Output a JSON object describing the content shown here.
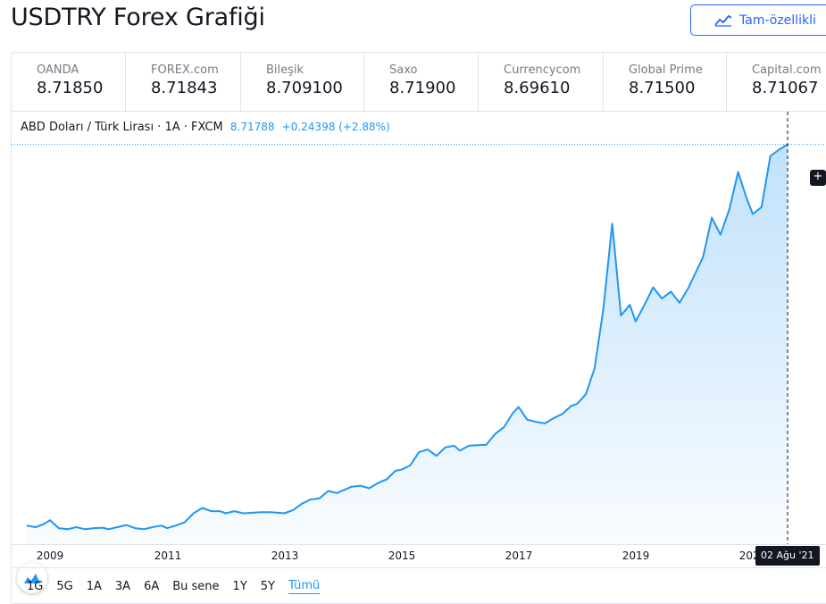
{
  "header": {
    "title": "USDTRY Forex Grafiği",
    "full_chart_label": "Tam-özellikli"
  },
  "quotes": [
    {
      "name": "OANDA",
      "price": "8.71850"
    },
    {
      "name": "FOREX.com",
      "price": "8.71843"
    },
    {
      "name": "Bileşik",
      "price": "8.709100"
    },
    {
      "name": "Saxo",
      "price": "8.71900"
    },
    {
      "name": "Currencycom",
      "price": "8.69610"
    },
    {
      "name": "Global Prime",
      "price": "8.71500"
    },
    {
      "name": "Capital.com",
      "price": "8.71067"
    }
  ],
  "legend": {
    "symbol": "ABD Doları / Türk Lirası · 1A · FXCM",
    "last": "8.71788",
    "change": "+0.24398 (+2.88%)"
  },
  "crosshair_date": "02 Ağu '21",
  "ranges": [
    {
      "label": "1G"
    },
    {
      "label": "5G"
    },
    {
      "label": "1A"
    },
    {
      "label": "3A"
    },
    {
      "label": "6A"
    },
    {
      "label": "Bu sene"
    },
    {
      "label": "1Y"
    },
    {
      "label": "5Y"
    },
    {
      "label": "Tümü",
      "active": true
    }
  ],
  "colors": {
    "line": "#2196f3",
    "accent": "#2962ff"
  },
  "chart_data": {
    "type": "area",
    "series": [
      {
        "x": [
          2008.6,
          2008.75,
          2008.9,
          2009.0,
          2009.15,
          2009.3,
          2009.45,
          2009.6,
          2009.75,
          2009.9,
          2010.0,
          2010.15,
          2010.3,
          2010.45,
          2010.6,
          2010.75,
          2010.9,
          2011.0,
          2011.15,
          2011.3,
          2011.45,
          2011.6,
          2011.75,
          2011.9,
          2012.0,
          2012.15,
          2012.3,
          2012.45,
          2012.6,
          2012.75,
          2012.9,
          2013.0,
          2013.15,
          2013.3,
          2013.45,
          2013.6,
          2013.75,
          2013.9,
          2014.0,
          2014.15,
          2014.3,
          2014.45,
          2014.6,
          2014.75,
          2014.9,
          2015.0,
          2015.15,
          2015.3,
          2015.45,
          2015.6,
          2015.75,
          2015.9,
          2016.0,
          2016.15,
          2016.3,
          2016.45,
          2016.6,
          2016.75,
          2016.9,
          2017.0,
          2017.15,
          2017.3,
          2017.45,
          2017.6,
          2017.75,
          2017.9,
          2018.0,
          2018.15,
          2018.3,
          2018.45,
          2018.6,
          2018.75,
          2018.9,
          2019.0,
          2019.15,
          2019.3,
          2019.45,
          2019.6,
          2019.75,
          2019.9,
          2020.0,
          2020.15,
          2020.3,
          2020.45,
          2020.6,
          2020.75,
          2020.9,
          2021.0,
          2021.15,
          2021.3,
          2021.45,
          2021.59
        ],
        "y": [
          1.55,
          1.52,
          1.58,
          1.65,
          1.5,
          1.48,
          1.52,
          1.48,
          1.5,
          1.51,
          1.48,
          1.52,
          1.56,
          1.5,
          1.48,
          1.52,
          1.55,
          1.5,
          1.55,
          1.61,
          1.78,
          1.88,
          1.82,
          1.82,
          1.78,
          1.82,
          1.78,
          1.79,
          1.8,
          1.8,
          1.79,
          1.78,
          1.84,
          1.96,
          2.04,
          2.06,
          2.2,
          2.16,
          2.21,
          2.28,
          2.3,
          2.25,
          2.35,
          2.42,
          2.58,
          2.6,
          2.68,
          2.93,
          2.98,
          2.86,
          3.02,
          3.05,
          2.96,
          3.05,
          3.06,
          3.07,
          3.27,
          3.4,
          3.66,
          3.78,
          3.54,
          3.5,
          3.47,
          3.57,
          3.65,
          3.8,
          3.84,
          4.02,
          4.51,
          5.64,
          7.23,
          5.5,
          5.7,
          5.39,
          5.7,
          6.03,
          5.82,
          5.95,
          5.74,
          6.02,
          6.25,
          6.6,
          7.34,
          7.02,
          7.5,
          8.2,
          7.69,
          7.41,
          7.54,
          8.5,
          8.62,
          8.72
        ]
      }
    ],
    "x_ticks": [
      "2009",
      "2011",
      "2013",
      "2015",
      "2017",
      "2019",
      "2021"
    ],
    "ylim": [
      1.2,
      9.2
    ],
    "last_value": 8.71788
  }
}
